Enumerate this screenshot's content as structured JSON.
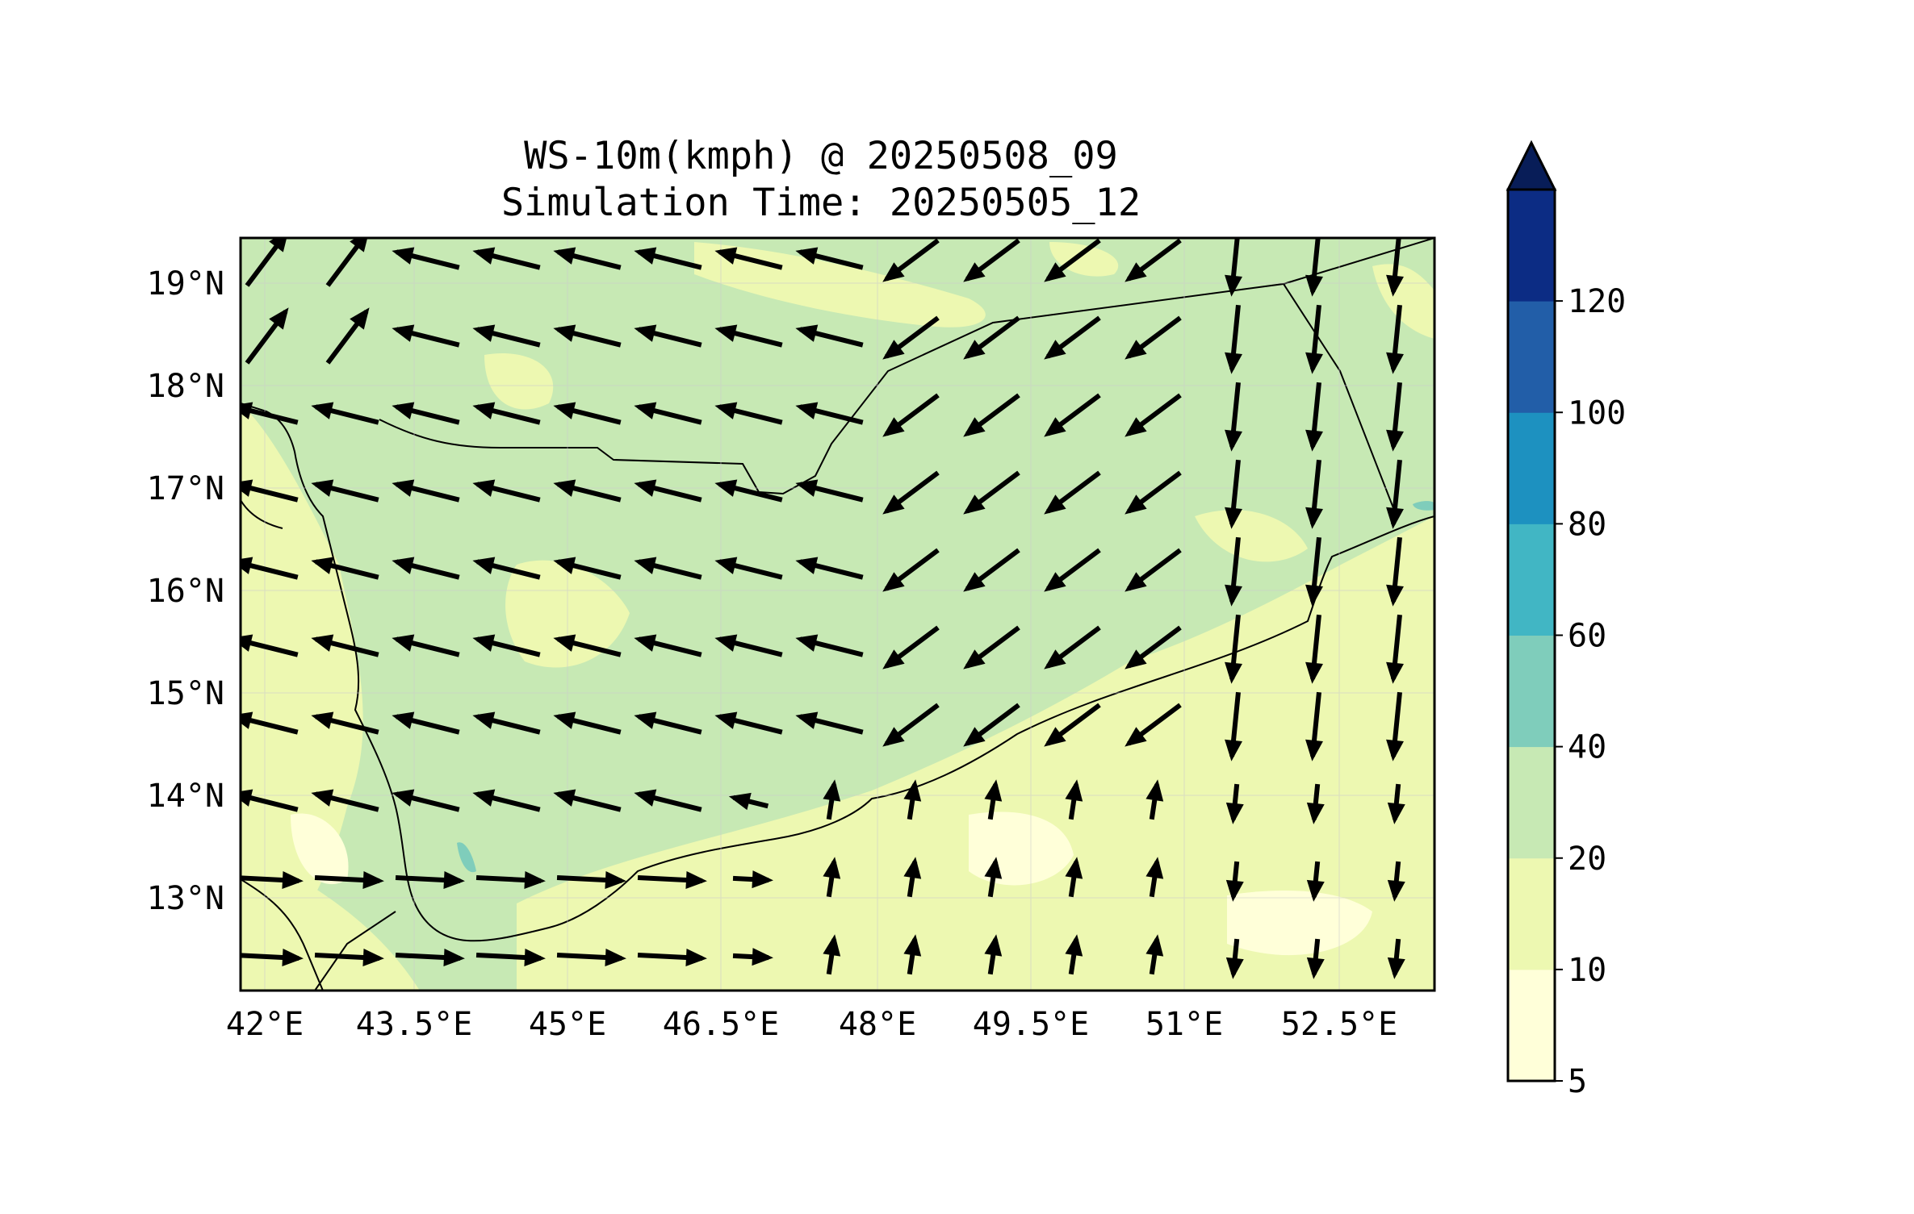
{
  "title": {
    "line1": "WS-10m(kmph) @ 20250508_09",
    "line2": "Simulation Time: 20250505_12"
  },
  "map": {
    "lon_range": [
      42.0,
      53.8
    ],
    "lat_range": [
      12.1,
      19.45
    ],
    "lon_ticks": [
      "42°E",
      "43.5°E",
      "45°E",
      "46.5°E",
      "48°E",
      "49.5°E",
      "51°E",
      "52.5°E"
    ],
    "lat_ticks": [
      "19°N",
      "18°N",
      "17°N",
      "16°N",
      "15°N",
      "14°N",
      "13°N"
    ],
    "field": "10 m wind speed (kmph) with wind direction vectors",
    "dominant_speed_band": "20-40",
    "wind_pattern": "easterly/north-easterly flow over interior Yemen, northerly over Oman border, weak south-westerly along southern coast"
  },
  "colorbar": {
    "levels": [
      "5",
      "10",
      "20",
      "40",
      "60",
      "80",
      "100",
      "120"
    ],
    "colors": [
      "#ffffd9",
      "#edf8b1",
      "#c7e9b4",
      "#7fcdbb",
      "#41b6c4",
      "#1d91c0",
      "#225ea8",
      "#0c2c84"
    ],
    "extend_color": "#081d58",
    "extend": "max"
  }
}
